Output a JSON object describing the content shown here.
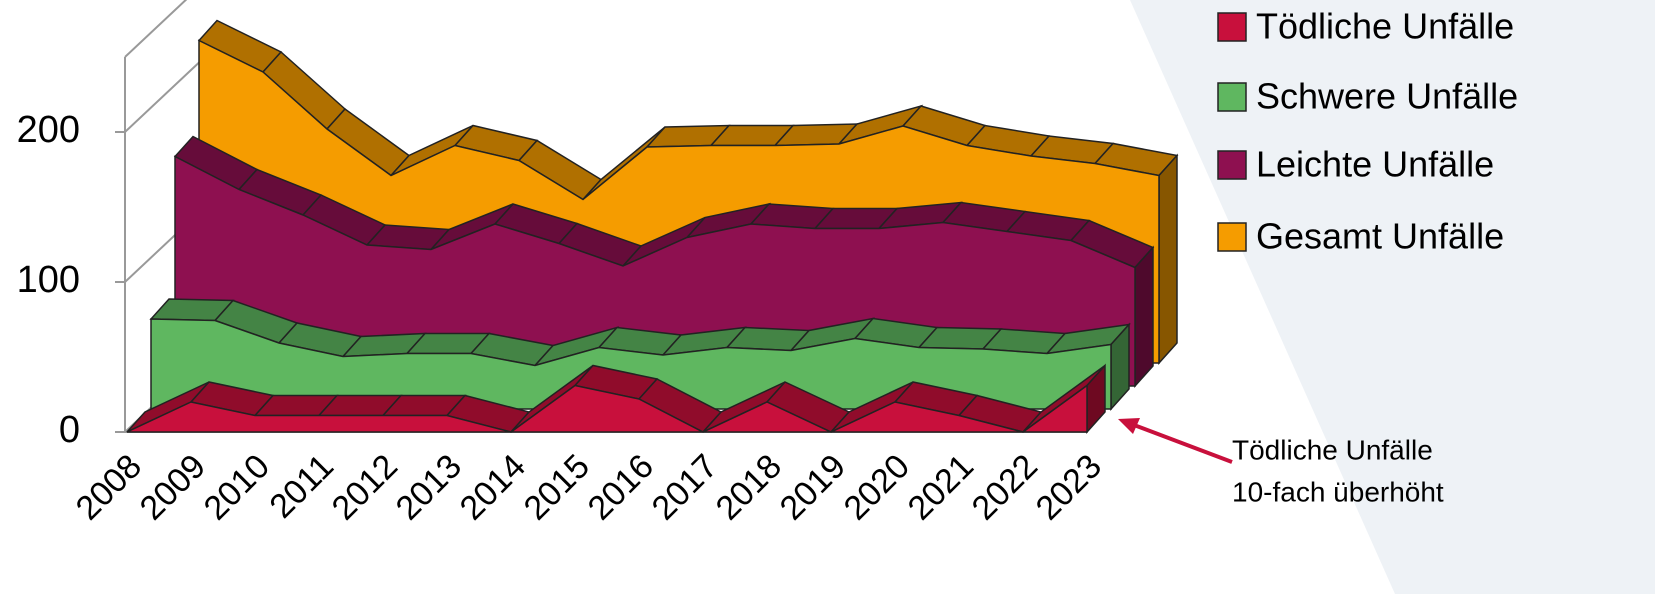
{
  "chart_data": {
    "type": "area",
    "categories": [
      "2008",
      "2009",
      "2010",
      "2011",
      "2012",
      "2013",
      "2014",
      "2015",
      "2016",
      "2017",
      "2018",
      "2019",
      "2020",
      "2021",
      "2022",
      "2023"
    ],
    "series": [
      {
        "name": "Tödliche Unfälle",
        "color": "#c8103c",
        "values": [
          0,
          20,
          11,
          11,
          11,
          11,
          0,
          31,
          22,
          0,
          20,
          0,
          20,
          11,
          0,
          31
        ]
      },
      {
        "name": "Schwere Unfälle",
        "color": "#5fb760",
        "values": [
          60,
          59,
          44,
          35,
          37,
          37,
          29,
          41,
          36,
          41,
          39,
          47,
          41,
          40,
          37,
          43
        ]
      },
      {
        "name": "Leichte Unfälle",
        "color": "#8e1050",
        "values": [
          153,
          131,
          114,
          94,
          91,
          108,
          95,
          80,
          99,
          108,
          105,
          105,
          109,
          103,
          97,
          79
        ]
      },
      {
        "name": "Gesamt Unfälle",
        "color": "#f59c00",
        "values": [
          215,
          194,
          156,
          125,
          145,
          135,
          109,
          144,
          145,
          145,
          146,
          158,
          145,
          138,
          133,
          125
        ]
      }
    ],
    "ylim": [
      0,
      250
    ],
    "yticks": [
      0,
      100,
      200
    ],
    "legend": "right",
    "annotations": [
      "Tödliche Unfälle",
      "10-fach überhöht"
    ]
  }
}
